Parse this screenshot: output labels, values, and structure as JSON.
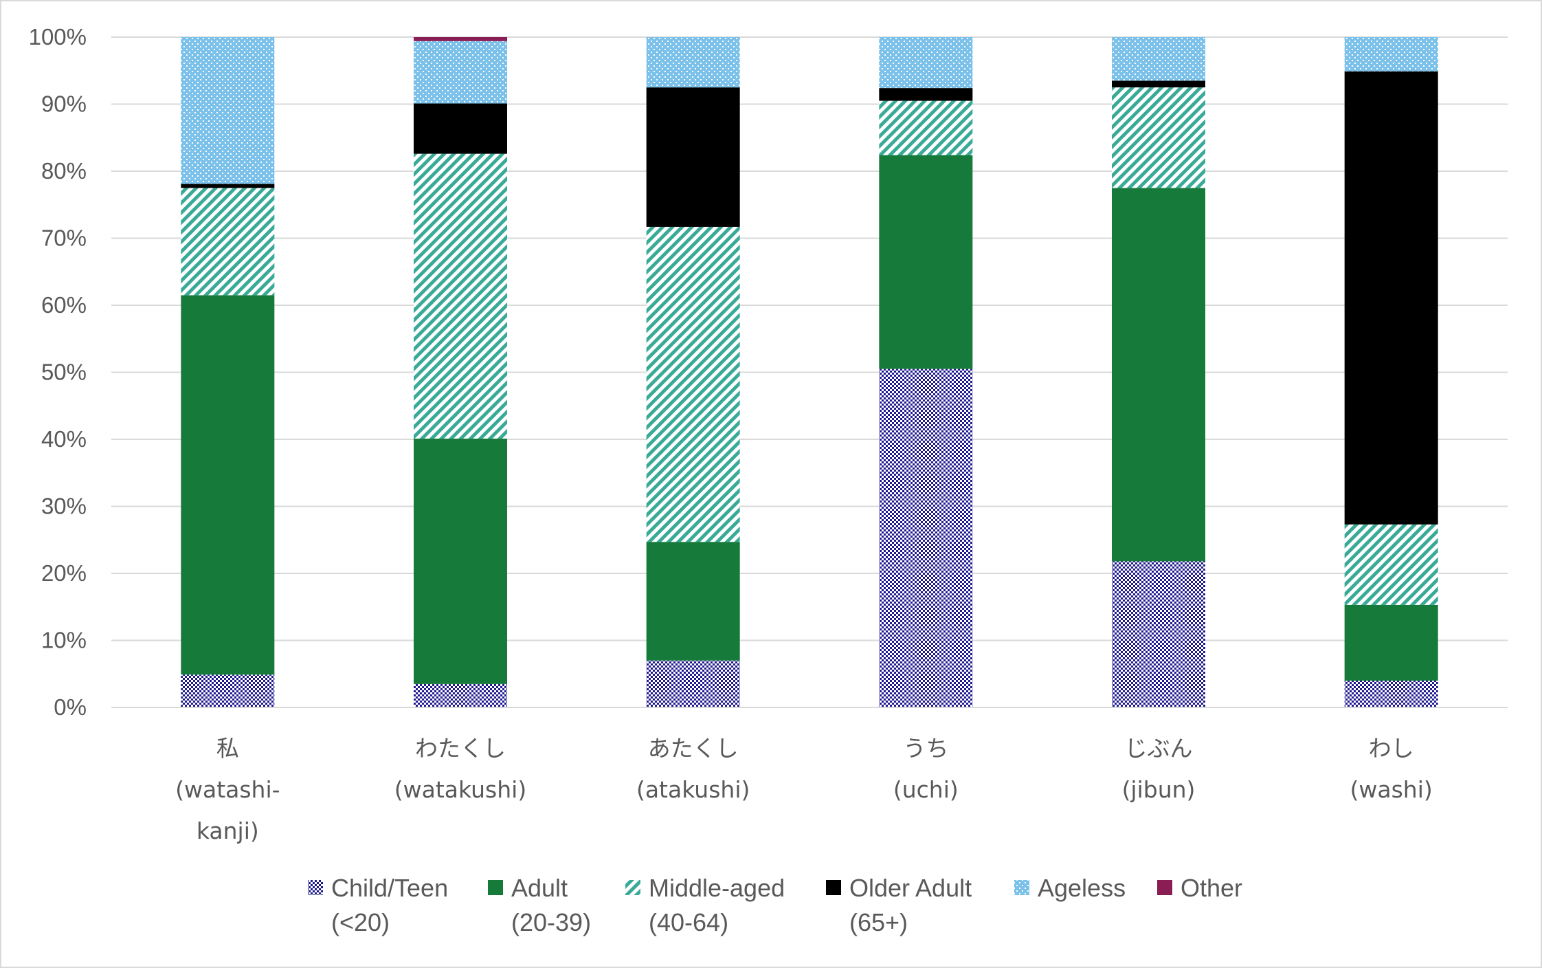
{
  "chart_data": {
    "type": "bar",
    "stacked": true,
    "normalized": true,
    "title": "",
    "xlabel": "",
    "ylabel": "",
    "ylim": [
      0,
      100
    ],
    "yticks": [
      "0%",
      "10%",
      "20%",
      "30%",
      "40%",
      "50%",
      "60%",
      "70%",
      "80%",
      "90%",
      "100%"
    ],
    "grid": true,
    "legend_position": "bottom",
    "categories": [
      [
        "私",
        "(watashi-",
        "kanji)"
      ],
      [
        "わたくし",
        "(watakushi)"
      ],
      [
        "あたくし",
        "(atakushi)"
      ],
      [
        "うち",
        "(uchi)"
      ],
      [
        "じぶん",
        "(jibun)"
      ],
      [
        "わし",
        "(washi)"
      ]
    ],
    "series": [
      {
        "name": [
          "Child/Teen",
          "(<20)"
        ],
        "color": "#1f1a8f",
        "pattern": "dots-dense",
        "values": [
          4.9,
          3.5,
          7.0,
          50.5,
          21.8,
          4.0
        ]
      },
      {
        "name": [
          "Adult",
          "(20-39)"
        ],
        "color": "#167a3a",
        "pattern": "solid",
        "values": [
          56.6,
          36.6,
          17.7,
          31.9,
          55.7,
          11.3
        ]
      },
      {
        "name": [
          "Middle-aged",
          "(40-64)"
        ],
        "color": "#3aaa98",
        "pattern": "diagonal",
        "values": [
          16.0,
          42.5,
          47.0,
          8.1,
          15.0,
          12.0
        ]
      },
      {
        "name": [
          "Older Adult",
          "(65+)"
        ],
        "color": "#000000",
        "pattern": "solid",
        "values": [
          0.6,
          7.5,
          20.8,
          1.9,
          1.0,
          67.6
        ]
      },
      {
        "name": [
          "Ageless"
        ],
        "color": "#7cc1ea",
        "pattern": "dots-light",
        "values": [
          21.9,
          9.3,
          7.5,
          7.6,
          6.5,
          5.1
        ]
      },
      {
        "name": [
          "Other"
        ],
        "color": "#8b1d55",
        "pattern": "solid",
        "values": [
          0,
          0.6,
          0,
          0,
          0,
          0
        ]
      }
    ]
  }
}
